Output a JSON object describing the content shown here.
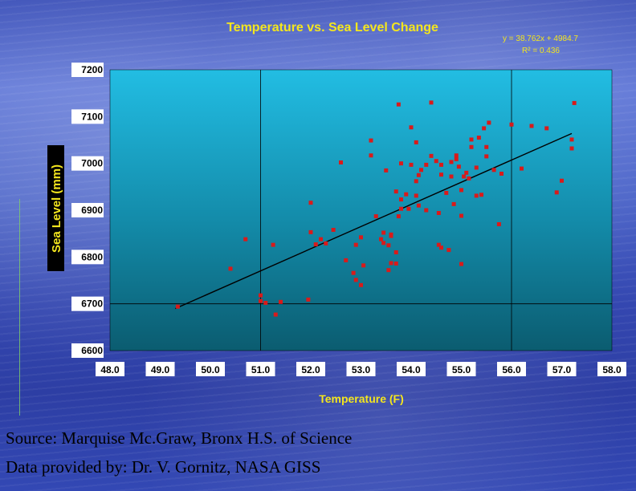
{
  "chart_data": {
    "type": "scatter",
    "title": "Temperature vs. Sea Level Change",
    "xlabel": "Temperature (F)",
    "ylabel": "Sea Level (mm)",
    "xlim": [
      48.0,
      58.0
    ],
    "ylim": [
      6600,
      7200
    ],
    "xticks": [
      "48.0",
      "49.0",
      "50.0",
      "51.0",
      "52.0",
      "53.0",
      "54.0",
      "55.0",
      "56.0",
      "57.0",
      "58.0"
    ],
    "yticks": [
      "7200",
      "7100",
      "7000",
      "6900",
      "6800",
      "6700",
      "6600"
    ],
    "grid": "x=51, x=56, y=6700 only",
    "equation": "y = 38.762x + 4984.7",
    "r_squared": "R² = 0.436",
    "trendline": {
      "x": [
        49.3,
        57.2
      ],
      "y": [
        6689.8,
        7064.0
      ]
    },
    "points": [
      [
        49.35,
        6694
      ],
      [
        50.4,
        6775
      ],
      [
        50.7,
        6838
      ],
      [
        51.0,
        6718
      ],
      [
        51.0,
        6706
      ],
      [
        51.1,
        6702
      ],
      [
        51.25,
        6826
      ],
      [
        51.3,
        6677
      ],
      [
        51.4,
        6704
      ],
      [
        51.95,
        6709
      ],
      [
        52.0,
        6916
      ],
      [
        52.0,
        6853
      ],
      [
        52.1,
        6827
      ],
      [
        52.2,
        6838
      ],
      [
        52.3,
        6829
      ],
      [
        52.45,
        6858
      ],
      [
        52.6,
        7002
      ],
      [
        52.7,
        6793
      ],
      [
        52.85,
        6766
      ],
      [
        52.9,
        6751
      ],
      [
        52.9,
        6826
      ],
      [
        53.0,
        6842
      ],
      [
        53.05,
        6782
      ],
      [
        53.0,
        6740
      ],
      [
        53.2,
        7049
      ],
      [
        53.2,
        7017
      ],
      [
        53.3,
        6887
      ],
      [
        53.4,
        6838
      ],
      [
        53.45,
        6830
      ],
      [
        53.45,
        6852
      ],
      [
        53.6,
        6848
      ],
      [
        53.55,
        6825
      ],
      [
        53.55,
        6772
      ],
      [
        53.6,
        6787
      ],
      [
        53.7,
        6786
      ],
      [
        53.7,
        6810
      ],
      [
        53.6,
        6845
      ],
      [
        53.5,
        6985
      ],
      [
        53.7,
        6940
      ],
      [
        53.8,
        6903
      ],
      [
        53.75,
        6887
      ],
      [
        53.8,
        6923
      ],
      [
        53.9,
        6934
      ],
      [
        53.95,
        6903
      ],
      [
        53.75,
        7126
      ],
      [
        53.8,
        7000
      ],
      [
        54.0,
        7077
      ],
      [
        54.1,
        7045
      ],
      [
        54.0,
        6997
      ],
      [
        54.1,
        6962
      ],
      [
        54.1,
        6931
      ],
      [
        54.15,
        6975
      ],
      [
        54.15,
        6910
      ],
      [
        54.2,
        6986
      ],
      [
        54.3,
        6997
      ],
      [
        54.3,
        6900
      ],
      [
        54.4,
        7016
      ],
      [
        54.4,
        7130
      ],
      [
        54.5,
        7005
      ],
      [
        54.55,
        6894
      ],
      [
        54.55,
        6826
      ],
      [
        54.6,
        6997
      ],
      [
        54.6,
        6976
      ],
      [
        54.6,
        6820
      ],
      [
        54.7,
        6937
      ],
      [
        54.75,
        6815
      ],
      [
        54.8,
        7003
      ],
      [
        54.8,
        6972
      ],
      [
        54.85,
        6913
      ],
      [
        54.9,
        7009
      ],
      [
        54.9,
        7017
      ],
      [
        54.95,
        6993
      ],
      [
        55.0,
        6943
      ],
      [
        55.0,
        6888
      ],
      [
        55.0,
        6785
      ],
      [
        55.05,
        6972
      ],
      [
        55.1,
        6980
      ],
      [
        55.15,
        6968
      ],
      [
        55.2,
        7051
      ],
      [
        55.2,
        7035
      ],
      [
        55.3,
        6931
      ],
      [
        55.3,
        6991
      ],
      [
        55.35,
        7055
      ],
      [
        55.4,
        6933
      ],
      [
        55.45,
        7075
      ],
      [
        55.5,
        7035
      ],
      [
        55.5,
        7015
      ],
      [
        55.55,
        7087
      ],
      [
        55.65,
        6986
      ],
      [
        55.75,
        6870
      ],
      [
        55.8,
        6978
      ],
      [
        56.0,
        7083
      ],
      [
        56.2,
        6989
      ],
      [
        56.4,
        7080
      ],
      [
        56.7,
        7075
      ],
      [
        56.9,
        6938
      ],
      [
        57.0,
        6963
      ],
      [
        57.2,
        7051
      ],
      [
        57.2,
        7032
      ],
      [
        57.25,
        7129
      ]
    ]
  },
  "source_lines": [
    "Source: Marquise Mc.Graw, Bronx H.S. of Science",
    "Data provided by: Dr. V. Gornitz, NASA GISS"
  ],
  "colors": {
    "plot_bg_top": "#1fb8e0",
    "plot_bg_bottom": "#0a5a6e",
    "point": "#d81b1b",
    "trendline": "#000000",
    "title": "#f4e61e"
  }
}
